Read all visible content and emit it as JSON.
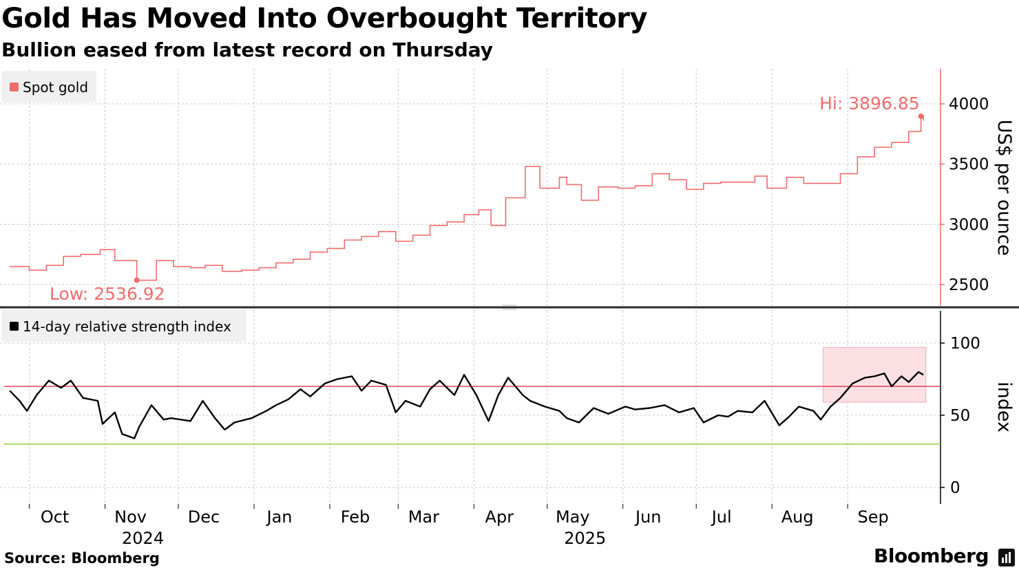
{
  "header": {
    "title": "Gold Has Moved Into Overbought Territory",
    "subtitle": "Bullion eased from latest record on Thursday"
  },
  "footer": {
    "source": "Source: Bloomberg",
    "brand": "Bloomberg"
  },
  "colors": {
    "gold": "#f26b6b",
    "rsi": "#000000",
    "overbought_line": "#e0405a",
    "oversold_line": "#8fcf3a",
    "overbought_zone": "#fde0e3",
    "grid": "#c8c8c8",
    "legend_bg": "#f0f0f0"
  },
  "chart_data": [
    {
      "type": "line",
      "legend": "Spot gold",
      "ylabel": "US$ per ounce",
      "ylim": [
        2300,
        4300
      ],
      "yticks": [
        "2500",
        "3000",
        "3500",
        "4000"
      ],
      "annotations": {
        "high": "Hi: 3896.85",
        "low": "Low: 2536.92"
      },
      "series": [
        {
          "name": "Spot gold",
          "x": [
            "2024-09-23",
            "2024-10-01",
            "2024-10-08",
            "2024-10-15",
            "2024-10-22",
            "2024-10-30",
            "2024-11-05",
            "2024-11-14",
            "2024-11-22",
            "2024-11-29",
            "2024-12-06",
            "2024-12-12",
            "2024-12-19",
            "2024-12-27",
            "2025-01-03",
            "2025-01-10",
            "2025-01-17",
            "2025-01-24",
            "2025-01-31",
            "2025-02-07",
            "2025-02-14",
            "2025-02-21",
            "2025-02-28",
            "2025-03-07",
            "2025-03-14",
            "2025-03-21",
            "2025-03-28",
            "2025-04-03",
            "2025-04-08",
            "2025-04-14",
            "2025-04-22",
            "2025-04-28",
            "2025-05-06",
            "2025-05-09",
            "2025-05-15",
            "2025-05-22",
            "2025-05-30",
            "2025-06-06",
            "2025-06-13",
            "2025-06-20",
            "2025-06-27",
            "2025-07-04",
            "2025-07-11",
            "2025-07-18",
            "2025-07-25",
            "2025-07-30",
            "2025-08-07",
            "2025-08-14",
            "2025-08-21",
            "2025-08-29",
            "2025-09-05",
            "2025-09-12",
            "2025-09-19",
            "2025-09-26",
            "2025-10-01",
            "2025-10-02"
          ],
          "values": [
            2650,
            2620,
            2660,
            2735,
            2750,
            2790,
            2700,
            2536.92,
            2700,
            2650,
            2640,
            2660,
            2610,
            2620,
            2640,
            2680,
            2710,
            2770,
            2800,
            2870,
            2900,
            2940,
            2860,
            2910,
            2990,
            3020,
            3080,
            3120,
            2990,
            3220,
            3480,
            3300,
            3390,
            3330,
            3200,
            3310,
            3300,
            3320,
            3420,
            3370,
            3290,
            3340,
            3350,
            3350,
            3400,
            3300,
            3390,
            3340,
            3340,
            3420,
            3560,
            3640,
            3680,
            3770,
            3896.85,
            3860
          ]
        }
      ]
    },
    {
      "type": "line",
      "legend": "14-day relative strength index",
      "ylabel": "index",
      "ylim": [
        -12,
        124
      ],
      "yticks": [
        "0",
        "50",
        "100"
      ],
      "reference_lines": {
        "overbought": 70,
        "oversold": 30
      },
      "overbought_window": {
        "x": [
          "2025-08-22",
          "2025-10-03"
        ],
        "y": [
          59,
          97
        ]
      },
      "xticks": [
        {
          "label": "Oct",
          "x": "2024-10-01"
        },
        {
          "label": "Nov",
          "x": "2024-11-01"
        },
        {
          "label": "Dec",
          "x": "2024-12-01"
        },
        {
          "label": "Jan",
          "x": "2025-01-01"
        },
        {
          "label": "Feb",
          "x": "2025-02-01"
        },
        {
          "label": "Mar",
          "x": "2025-03-01"
        },
        {
          "label": "Apr",
          "x": "2025-04-01"
        },
        {
          "label": "May",
          "x": "2025-05-01"
        },
        {
          "label": "Jun",
          "x": "2025-06-01"
        },
        {
          "label": "Jul",
          "x": "2025-07-01"
        },
        {
          "label": "Aug",
          "x": "2025-08-01"
        },
        {
          "label": "Sep",
          "x": "2025-09-01"
        }
      ],
      "year_labels": [
        {
          "label": "2024",
          "x": "2024-11-01"
        },
        {
          "label": "2025",
          "x": "2025-05-01"
        }
      ],
      "series": [
        {
          "name": "14-day relative strength index",
          "x": [
            "2024-09-23",
            "2024-09-27",
            "2024-09-30",
            "2024-10-04",
            "2024-10-09",
            "2024-10-14",
            "2024-10-18",
            "2024-10-23",
            "2024-10-29",
            "2024-10-31",
            "2024-11-05",
            "2024-11-08",
            "2024-11-13",
            "2024-11-15",
            "2024-11-20",
            "2024-11-25",
            "2024-11-28",
            "2024-12-06",
            "2024-12-11",
            "2024-12-16",
            "2024-12-20",
            "2024-12-24",
            "2024-12-31",
            "2025-01-06",
            "2025-01-10",
            "2025-01-15",
            "2025-01-20",
            "2025-01-24",
            "2025-01-30",
            "2025-02-04",
            "2025-02-10",
            "2025-02-14",
            "2025-02-18",
            "2025-02-24",
            "2025-02-28",
            "2025-03-04",
            "2025-03-10",
            "2025-03-14",
            "2025-03-18",
            "2025-03-24",
            "2025-03-28",
            "2025-04-02",
            "2025-04-07",
            "2025-04-11",
            "2025-04-15",
            "2025-04-21",
            "2025-04-24",
            "2025-04-30",
            "2025-05-06",
            "2025-05-09",
            "2025-05-14",
            "2025-05-20",
            "2025-05-26",
            "2025-06-02",
            "2025-06-06",
            "2025-06-12",
            "2025-06-18",
            "2025-06-24",
            "2025-06-30",
            "2025-07-04",
            "2025-07-10",
            "2025-07-14",
            "2025-07-18",
            "2025-07-24",
            "2025-07-29",
            "2025-08-04",
            "2025-08-08",
            "2025-08-12",
            "2025-08-18",
            "2025-08-21",
            "2025-08-25",
            "2025-08-29",
            "2025-09-03",
            "2025-09-08",
            "2025-09-12",
            "2025-09-16",
            "2025-09-19",
            "2025-09-23",
            "2025-09-26",
            "2025-09-30",
            "2025-10-02"
          ],
          "values": [
            67,
            60,
            53,
            64,
            74,
            69,
            74,
            62,
            60,
            44,
            52,
            37,
            34,
            42,
            57,
            47,
            48,
            46,
            60,
            48,
            40,
            45,
            48,
            53,
            57,
            61,
            68,
            63,
            72,
            75,
            77,
            67,
            74,
            71,
            52,
            60,
            56,
            68,
            74,
            64,
            78,
            64,
            46,
            64,
            76,
            64,
            60,
            56,
            53,
            48,
            45,
            55,
            51,
            56,
            54,
            55,
            57,
            52,
            55,
            45,
            50,
            49,
            53,
            52,
            60,
            43,
            49,
            56,
            53,
            47,
            56,
            62,
            72,
            76,
            77,
            79,
            70,
            77,
            73,
            80,
            78
          ]
        }
      ]
    }
  ]
}
